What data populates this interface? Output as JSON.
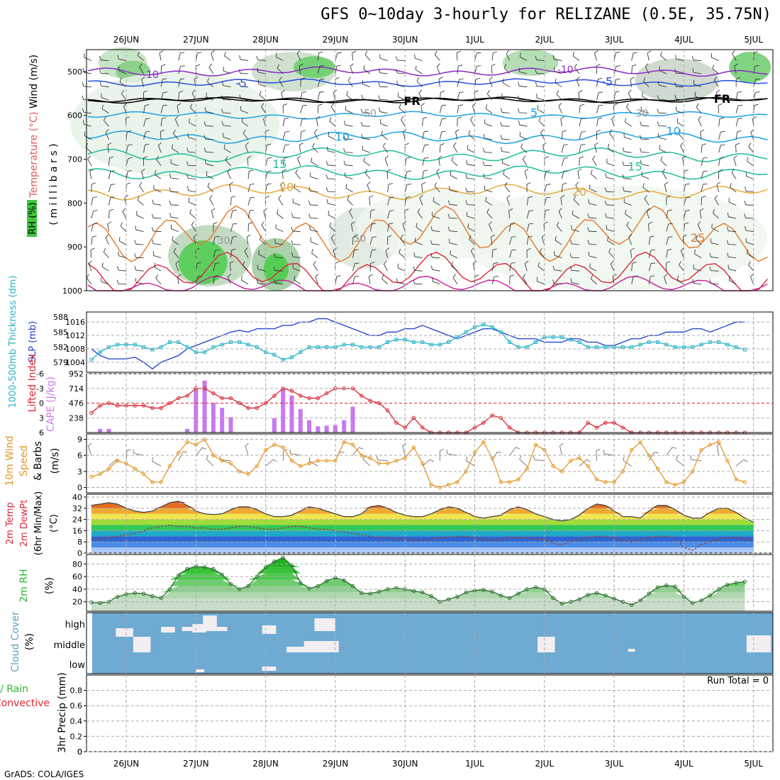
{
  "title": "GFS 0~10day 3-hourly for RELIZANE (0.5E, 35.75N)",
  "footer": "GrADS: COLA/IGES",
  "day_labels": [
    "26JUN",
    "27JUN",
    "28JUN",
    "29JUN",
    "30JUN",
    "1JUL",
    "2JUL",
    "3JUL",
    "4JUL",
    "5JUL"
  ],
  "colors": {
    "rh_green": "#3cc83c",
    "temp_purple": "#8c28c8",
    "temp_blue": "#2850dc",
    "temp_cyan": "#1ea0e6",
    "temp_teal": "#1ebe9b",
    "temp_orange": "#e6aa3c",
    "temp_dorange": "#e67828",
    "temp_red": "#dc283c",
    "slp": "#1e3cd2",
    "thickness": "#28b4c8",
    "li": "#dc2832",
    "cape": "#c878f0",
    "wind10": "#e69628",
    "rh2": "#32b432",
    "cloud_bg": "#6eaad2",
    "grid": "#aaaaaa"
  },
  "chart_data": [
    {
      "type": "contour",
      "name": "upper_air",
      "ylabel_wind": "Wind (m/s)",
      "ylabel_temp": "Temperature (°C)",
      "ylabel_rh": "RH (%)",
      "ylabel_axis": "( m i l l i b a r s )",
      "y_ticks": [
        500,
        600,
        700,
        800,
        900,
        1000
      ],
      "ylim": [
        1000,
        450
      ],
      "isotherm_labels": [
        {
          "t": 0.35,
          "p": 507,
          "text": "-10",
          "color": "#8c28c8"
        },
        {
          "t": 6.3,
          "p": 495,
          "text": "-10",
          "color": "#8c28c8"
        },
        {
          "t": 1.65,
          "p": 528,
          "text": "-5",
          "color": "#2850dc"
        },
        {
          "t": 6.9,
          "p": 524,
          "text": "-5",
          "color": "#2850dc"
        },
        {
          "t": 4.1,
          "p": 568,
          "text": "FR",
          "color": "#000000"
        },
        {
          "t": 8.55,
          "p": 563,
          "text": "FR",
          "color": "#000000"
        },
        {
          "t": 5.85,
          "p": 595,
          "text": "5",
          "color": "#1ea0e6"
        },
        {
          "t": 3.1,
          "p": 650,
          "text": "10",
          "color": "#1ea0e6"
        },
        {
          "t": 7.85,
          "p": 637,
          "text": "10",
          "color": "#1ea0e6"
        },
        {
          "t": 2.2,
          "p": 712,
          "text": "15",
          "color": "#1ebe9b"
        },
        {
          "t": 7.3,
          "p": 718,
          "text": "15",
          "color": "#1ebe9b"
        },
        {
          "t": 2.3,
          "p": 765,
          "text": "20",
          "color": "#e6aa3c"
        },
        {
          "t": 6.5,
          "p": 775,
          "text": "20",
          "color": "#e6aa3c"
        },
        {
          "t": 8.2,
          "p": 880,
          "text": "25",
          "color": "#e67828"
        },
        {
          "t": 1.4,
          "p": 885,
          "text": "30",
          "color": "#999999"
        },
        {
          "t": 3.35,
          "p": 880,
          "text": "50",
          "color": "#999999"
        },
        {
          "t": 3.5,
          "p": 595,
          "text": "50",
          "color": "#999999"
        },
        {
          "t": 7.4,
          "p": 595,
          "text": "30",
          "color": "#999999"
        }
      ]
    },
    {
      "type": "line",
      "name": "slp_thickness",
      "ylabel_left": "1000-500mb Thickness (dm)",
      "ylabel_right": "SLP (mb)",
      "thickness_ticks": [
        579,
        582,
        585,
        588
      ],
      "slp_ticks": [
        1004,
        1008,
        1012,
        1016
      ],
      "slp": [
        1008,
        1006,
        1005,
        1005,
        1005,
        1005.5,
        1004,
        1002,
        1004,
        1005,
        1006,
        1008,
        1009,
        1010,
        1011,
        1012,
        1013,
        1013.5,
        1013,
        1014,
        1014,
        1014,
        1015,
        1015,
        1016,
        1016,
        1017,
        1017,
        1016,
        1015,
        1014,
        1013,
        1012,
        1012,
        1013,
        1013,
        1014,
        1014,
        1015,
        1014,
        1013,
        1012,
        1011,
        1012,
        1013,
        1014,
        1014,
        1013,
        1012,
        1011,
        1011,
        1011,
        1010,
        1010,
        1010,
        1011,
        1011,
        1010,
        1010,
        1009,
        1009,
        1010,
        1011,
        1011,
        1012,
        1012,
        1013,
        1013,
        1013,
        1014,
        1014,
        1013,
        1014,
        1015,
        1016,
        1016
      ],
      "thickness": [
        579.5,
        581,
        582,
        582.5,
        582.5,
        582.5,
        582,
        581.5,
        582,
        583,
        583,
        582,
        581,
        581,
        582,
        582.5,
        583,
        583,
        582.5,
        582,
        581,
        580.5,
        579.5,
        580,
        581,
        582,
        582,
        582,
        582,
        582.5,
        582.5,
        582,
        582,
        582,
        583,
        583.5,
        583.5,
        583,
        583,
        582.5,
        582.5,
        583,
        584,
        585,
        586,
        586.5,
        586,
        585,
        583,
        582,
        582,
        583,
        584,
        584,
        584,
        583.5,
        583,
        582,
        582,
        582,
        582,
        582,
        582,
        582.5,
        583,
        583,
        582.5,
        582,
        582,
        582,
        582.5,
        583,
        583,
        582.5,
        582,
        581.5
      ]
    },
    {
      "type": "bar+line",
      "name": "cape_li",
      "ylabel_left": "Lifted Index",
      "ylabel_right": "CAPE (J/kg)",
      "li_ticks": [
        -6,
        -3,
        0,
        3,
        6
      ],
      "cape_ticks": [
        238,
        476,
        714,
        952
      ],
      "cape": [
        0,
        60,
        60,
        0,
        0,
        0,
        0,
        0,
        0,
        0,
        0,
        60,
        720,
        840,
        480,
        400,
        250,
        0,
        0,
        0,
        0,
        230,
        700,
        600,
        380,
        200,
        100,
        110,
        120,
        200,
        420,
        0,
        0,
        0,
        0,
        0,
        0,
        0,
        0,
        0,
        0,
        0,
        0,
        0,
        0,
        0,
        0,
        0,
        0,
        0,
        0,
        0,
        0,
        0,
        0,
        0,
        0,
        0,
        0,
        0,
        0,
        0,
        0,
        0,
        0,
        0,
        0,
        0,
        0,
        0,
        0,
        0,
        0,
        0,
        0,
        0
      ],
      "li": [
        2,
        0.5,
        0,
        0.5,
        0.5,
        0.5,
        0.5,
        1,
        1,
        0,
        -1,
        -1.5,
        -3,
        -3,
        -2,
        -1,
        -1,
        0,
        1,
        1,
        0,
        -1.5,
        -3,
        -2.5,
        -1.5,
        -1,
        -1,
        -2,
        -3,
        -3,
        -3,
        -1.5,
        -0.5,
        0,
        1.5,
        4,
        5,
        3,
        5,
        6,
        6,
        6,
        6,
        6,
        5,
        4,
        2.5,
        3,
        5,
        6,
        6,
        6,
        6,
        6,
        6,
        6,
        6,
        4,
        5,
        4,
        4,
        5,
        6,
        6,
        6,
        6,
        6,
        6,
        6,
        6,
        6,
        6,
        6,
        6,
        6,
        6
      ]
    },
    {
      "type": "line",
      "name": "wind10m",
      "ylabel": "10m Wind Speed & Barbs (m/s)",
      "y_ticks": [
        0,
        3,
        6,
        9
      ],
      "values": [
        2,
        2.5,
        3.5,
        5,
        4.5,
        3.5,
        2.5,
        1,
        1,
        4,
        6.5,
        8.5,
        8,
        9,
        6,
        5,
        4.5,
        3,
        2.5,
        4,
        7,
        8,
        7.5,
        5,
        4,
        4.5,
        5,
        5,
        5,
        8.5,
        8,
        6,
        5.5,
        4.5,
        4.5,
        5,
        5.5,
        7.5,
        4.5,
        0.5,
        0,
        0.5,
        1,
        3,
        6.5,
        8.5,
        5.5,
        1,
        1,
        1.5,
        3.5,
        8,
        7,
        4,
        3,
        5,
        5.5,
        4,
        1.5,
        1,
        1,
        3,
        7,
        8.5,
        6,
        3.5,
        1,
        0.5,
        1,
        3,
        7,
        8,
        8.5,
        5,
        1.5,
        1
      ]
    },
    {
      "type": "area",
      "name": "temp2m",
      "ylabel": "2m Temp / 2m DewPt (6hr Min/Max) (°C)",
      "y_ticks": [
        0,
        8,
        16,
        24,
        32,
        40
      ],
      "temp": [
        34,
        35,
        36,
        35,
        32,
        30,
        29,
        30,
        33,
        36,
        37,
        34,
        30,
        28,
        27.5,
        28,
        31,
        33,
        33,
        31,
        28,
        26,
        26,
        27,
        30,
        33,
        32,
        30,
        28,
        26,
        26,
        28,
        33,
        34,
        32,
        29,
        27,
        26,
        26,
        28,
        31,
        33,
        32,
        29,
        26,
        25,
        26,
        27,
        31,
        33,
        31,
        28,
        26,
        24,
        23,
        24,
        27,
        32,
        35,
        34,
        30,
        26,
        26,
        25,
        30,
        34,
        34,
        31,
        27,
        25,
        25,
        29,
        32,
        32,
        29,
        25,
        22
      ],
      "dewpt": [
        10,
        10,
        11,
        12,
        13,
        14,
        16,
        18,
        19,
        20,
        19,
        19,
        18,
        18,
        17,
        17,
        18,
        19,
        19,
        18,
        17,
        17,
        18,
        19,
        19,
        18,
        17,
        17,
        16,
        15,
        14,
        13,
        12,
        11,
        11,
        10,
        10,
        9,
        9,
        10,
        11,
        11,
        12,
        12,
        11,
        10,
        9,
        10,
        11,
        11,
        11,
        10,
        10,
        7,
        6,
        8,
        10,
        11,
        12,
        12,
        11,
        9,
        8,
        10,
        11,
        12,
        12,
        11,
        4,
        2,
        6,
        8,
        10,
        11,
        11,
        10,
        9
      ]
    },
    {
      "type": "area",
      "name": "rh2m",
      "ylabel": "2m RH (%)",
      "y_ticks": [
        20,
        40,
        60,
        80
      ],
      "values": [
        19,
        18,
        20,
        28,
        32,
        34,
        33,
        29,
        26,
        40,
        62,
        72,
        76,
        75,
        72,
        63,
        48,
        40,
        45,
        60,
        75,
        84,
        90,
        78,
        50,
        41,
        45,
        53,
        58,
        54,
        45,
        34,
        33,
        36,
        40,
        42,
        40,
        37,
        35,
        29,
        20,
        24,
        28,
        35,
        38,
        39,
        36,
        30,
        26,
        33,
        40,
        43,
        40,
        26,
        17,
        20,
        24,
        31,
        34,
        30,
        25,
        20,
        15,
        22,
        33,
        43,
        46,
        44,
        28,
        18,
        22,
        30,
        40,
        47,
        50,
        52
      ]
    },
    {
      "type": "table",
      "name": "cloud_cover",
      "ylabel": "Cloud Cover (%)",
      "levels": [
        "high",
        "middle",
        "low"
      ]
    },
    {
      "type": "line",
      "name": "precip",
      "ylabel_left": "Total / Rain",
      "ylabel_left2": "Convective",
      "ylabel": "3hr Precip (mm)",
      "y_ticks": [
        0,
        0.2,
        0.4,
        0.6,
        0.8
      ],
      "run_total": "Run Total = 0",
      "values": [
        0,
        0,
        0,
        0,
        0,
        0,
        0,
        0,
        0,
        0
      ]
    }
  ]
}
